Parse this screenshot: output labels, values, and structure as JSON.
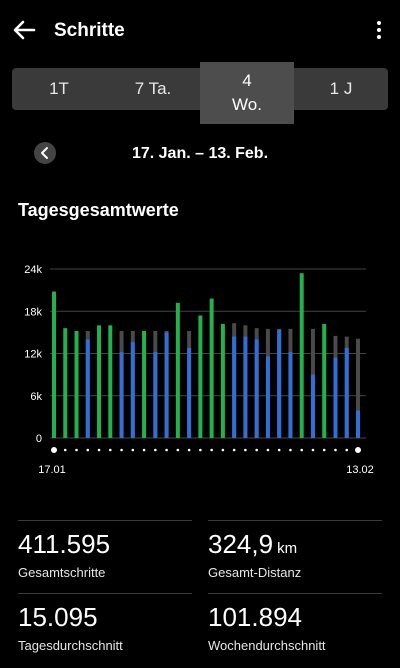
{
  "header": {
    "title": "Schritte",
    "back_icon": "arrow-left-icon",
    "menu_icon": "more-vert-icon"
  },
  "tabs": [
    {
      "label": "1T",
      "active": false
    },
    {
      "label": "7 Ta.",
      "active": false
    },
    {
      "label": "4\nWo.",
      "active": true
    },
    {
      "label": "1 J",
      "active": false
    }
  ],
  "range": {
    "label": "17. Jan. – 13. Feb.",
    "prev_icon": "chevron-left-icon"
  },
  "chart_title": "Tagesgesamtwerte",
  "colors": {
    "goal_met": "#22b14c",
    "steps": "#2f6fd6",
    "goal": "#4a4a4a",
    "grid": "#444444"
  },
  "chart_data": {
    "type": "bar",
    "ylim": [
      0,
      24000
    ],
    "yticks": [
      "0",
      "6k",
      "12k",
      "18k",
      "24k"
    ],
    "x_start_label": "17.01",
    "x_end_label": "13.02",
    "values": [
      20800,
      15600,
      15200,
      15200,
      16000,
      16000,
      15200,
      15200,
      15200,
      15200,
      15200,
      19200,
      15200,
      17600,
      19800,
      16000,
      16000,
      15200,
      15200,
      15200,
      15200,
      23400,
      15200,
      16200,
      14800,
      14800,
      14400,
      14000
    ],
    "goals": [
      15200,
      15200,
      15200,
      15200,
      15200,
      15200,
      15200,
      15200,
      15200,
      15200,
      15200,
      15200,
      15200,
      15200,
      15200,
      15200,
      16300,
      16000,
      15600,
      15500,
      15500,
      15500,
      14800,
      15500,
      14800,
      14500,
      14400,
      14100
    ],
    "series_shown": [
      20800,
      15600,
      15200,
      14000,
      16000,
      16000,
      12200,
      13600,
      15200,
      12200,
      15000,
      19200,
      12800,
      17400,
      19800,
      16200,
      14400,
      14400,
      14000,
      11600,
      15400,
      12200,
      23400,
      9000,
      16200,
      11400,
      12800,
      3900
    ]
  },
  "stats": [
    {
      "value": "411.595",
      "unit": "",
      "label": "Gesamtschritte"
    },
    {
      "value": "324,9",
      "unit": "km",
      "label": "Gesamt-Distanz"
    },
    {
      "value": "15.095",
      "unit": "",
      "label": "Tagesdurchschnitt"
    },
    {
      "value": "101.894",
      "unit": "",
      "label": "Wochendurchschnitt"
    }
  ]
}
